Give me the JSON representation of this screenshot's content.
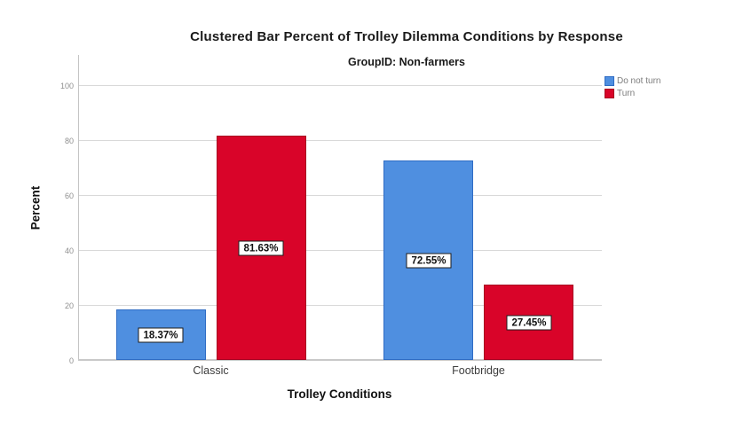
{
  "chart_data": {
    "type": "bar",
    "title": "Clustered Bar Percent of Trolley Dilemma Conditions by Response",
    "subtitle": "GroupID: Non-farmers",
    "xlabel": "Trolley Conditions",
    "ylabel": "Percent",
    "categories": [
      "Classic",
      "Footbridge"
    ],
    "series": [
      {
        "name": "Do not turn",
        "values": [
          18.37,
          72.55
        ],
        "data_labels": [
          "18.37%",
          "72.55%"
        ],
        "fill_color": "#4f8fe0",
        "border_color": "#2f6cc4"
      },
      {
        "name": "Turn",
        "values": [
          81.63,
          27.45
        ],
        "data_labels": [
          "81.63%",
          "27.45%"
        ],
        "fill_color": "#d90429",
        "border_color": "#a80321"
      }
    ],
    "ylim": [
      0,
      100
    ],
    "yticks": [
      0,
      20,
      40,
      60,
      80,
      100
    ],
    "grid": true,
    "legend_position": "top-right",
    "data_label_style": "boxed, centered inside bar"
  }
}
